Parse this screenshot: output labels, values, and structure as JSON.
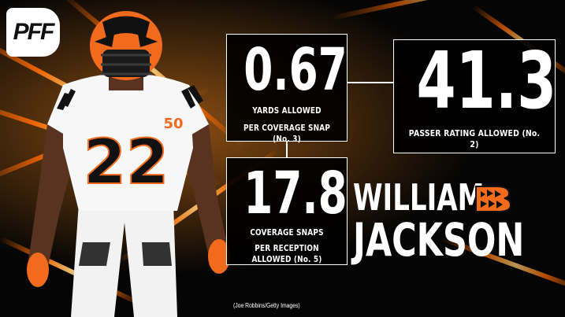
{
  "brand": {
    "logo_text": "PFF"
  },
  "player": {
    "first_name": "WILLIAM",
    "last_name": "JACKSON",
    "jersey_number": "22",
    "patch_text": "50"
  },
  "stats": [
    {
      "value": "0.67",
      "label_line1": "YARDS ALLOWED",
      "label_line2": "PER COVERAGE SNAP (No. 3)"
    },
    {
      "value": "41.3",
      "label_line1": "PASSER RATING ALLOWED (No. 2)",
      "label_line2": ""
    },
    {
      "value": "17.8",
      "label_line1": "COVERAGE SNAPS",
      "label_line2": "PER RECEPTION ALLOWED (No. 5)"
    }
  ],
  "photo_credit": "(Joe Robbins/Getty Images)",
  "colors": {
    "accent_orange": "#ff6a00",
    "background": "#050505",
    "box_border": "#ffffff"
  },
  "icons": {
    "team_logo": "bengals-b-icon"
  }
}
